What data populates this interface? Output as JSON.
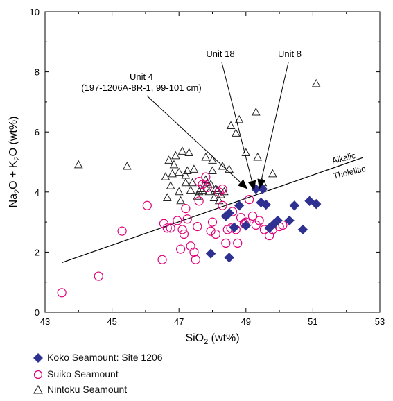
{
  "chart_data": {
    "type": "scatter",
    "xlabel": "SiO",
    "xlabel_sub": "2",
    "xlabel_units": " (wt%)",
    "ylabel_parts": [
      "Na",
      "2",
      "O + K",
      "2",
      "O (wt%)"
    ],
    "xlim": [
      43,
      53
    ],
    "ylim": [
      0,
      10
    ],
    "xticks": [
      43,
      45,
      47,
      49,
      51,
      53
    ],
    "yticks": [
      0,
      2,
      4,
      6,
      8,
      10
    ],
    "divider_line": {
      "x": [
        43.5,
        52.5
      ],
      "y": [
        1.65,
        5.15
      ]
    },
    "divider_labels": {
      "upper": "Alkalic",
      "lower": "Tholeiitic"
    },
    "annotations": [
      {
        "lines": [
          "Unit 18"
        ],
        "points_to": [
          49.25,
          4.05
        ]
      },
      {
        "lines": [
          "Unit 8"
        ],
        "points_to": [
          49.4,
          4.1
        ]
      },
      {
        "lines": [
          "Unit 4",
          "(197-1206A-8R-1, 99-101 cm)"
        ],
        "points_to": [
          49.05,
          4.1
        ]
      }
    ],
    "series": [
      {
        "name": "Koko Seamount: Site 1206",
        "marker": "diamond",
        "color": "#2e3192",
        "x": [
          47.95,
          48.5,
          48.4,
          48.5,
          48.65,
          48.8,
          49.0,
          49.3,
          49.45,
          49.5,
          49.6,
          49.7,
          49.85,
          49.95,
          50.3,
          50.45,
          50.7,
          50.9,
          51.1
        ],
        "y": [
          1.95,
          1.82,
          3.2,
          3.3,
          2.82,
          3.55,
          2.88,
          4.1,
          3.65,
          4.1,
          3.58,
          2.8,
          2.95,
          3.05,
          3.05,
          3.55,
          2.75,
          3.7,
          3.6
        ]
      },
      {
        "name": "Suiko Seamount",
        "marker": "circle",
        "color": "#e0007a",
        "x": [
          43.5,
          44.6,
          45.3,
          46.05,
          46.5,
          46.55,
          46.65,
          46.75,
          46.95,
          47.05,
          47.1,
          47.15,
          47.2,
          47.25,
          47.35,
          47.45,
          47.5,
          47.55,
          47.6,
          47.7,
          47.8,
          47.85,
          47.95,
          48.0,
          48.1,
          48.2,
          48.3,
          48.4,
          48.45,
          48.55,
          48.6,
          48.7,
          48.75,
          48.85,
          48.95,
          49.0,
          49.1,
          49.2,
          49.3,
          49.4,
          49.55,
          49.7,
          49.8,
          50.0,
          50.1,
          47.6,
          48.3
        ],
        "y": [
          0.65,
          1.2,
          2.7,
          3.55,
          1.75,
          2.95,
          2.8,
          2.8,
          3.05,
          2.1,
          2.75,
          2.6,
          3.45,
          3.1,
          2.2,
          2.0,
          1.75,
          2.85,
          3.7,
          4.25,
          4.5,
          4.15,
          2.7,
          3.0,
          2.6,
          4.0,
          3.55,
          2.3,
          2.75,
          2.8,
          3.35,
          2.75,
          2.3,
          3.15,
          2.95,
          3.0,
          3.75,
          3.2,
          2.9,
          3.05,
          2.75,
          2.55,
          2.75,
          2.85,
          2.9,
          4.35,
          4.1
        ]
      },
      {
        "name": "Nintoku Seamount",
        "marker": "triangle",
        "color": "#222222",
        "x": [
          44.0,
          45.45,
          46.65,
          46.75,
          46.8,
          46.85,
          46.9,
          47.0,
          47.05,
          47.1,
          47.2,
          47.25,
          47.3,
          47.35,
          47.45,
          47.55,
          47.6,
          47.65,
          47.7,
          47.8,
          47.85,
          47.9,
          47.95,
          48.0,
          48.05,
          48.1,
          48.15,
          48.2,
          48.25,
          48.3,
          48.35,
          48.5,
          48.55,
          48.7,
          48.8,
          49.0,
          49.3,
          49.35,
          49.5,
          49.8,
          51.1,
          46.6,
          46.7,
          47.0,
          47.2,
          47.4,
          47.8,
          48.0
        ],
        "y": [
          4.9,
          4.85,
          3.8,
          4.2,
          4.6,
          4.9,
          5.2,
          4.0,
          3.7,
          5.35,
          4.3,
          4.7,
          5.3,
          4.05,
          4.75,
          3.85,
          4.0,
          4.1,
          4.05,
          4.4,
          4.3,
          4.0,
          4.25,
          4.7,
          3.8,
          4.1,
          4.05,
          3.7,
          3.9,
          4.85,
          4.0,
          4.75,
          6.2,
          5.95,
          6.4,
          5.3,
          6.65,
          5.15,
          4.3,
          4.6,
          7.6,
          4.5,
          5.05,
          4.65,
          4.55,
          4.3,
          5.15,
          5.05
        ]
      }
    ],
    "legend_position": "bottom-left"
  }
}
